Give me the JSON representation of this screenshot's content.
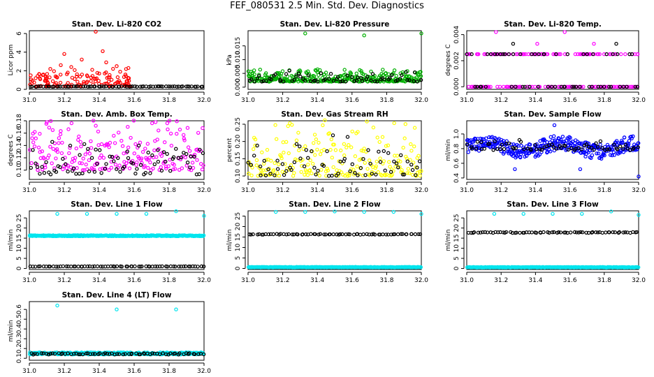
{
  "figure": {
    "title": "FEF_080531  2.5 Min. Std. Dev. Diagnostics"
  },
  "chart_data": [
    {
      "type": "scatter",
      "title": "Stan. Dev. Li-820 CO2",
      "xlabel": "",
      "ylabel": "Licor ppm",
      "xlim": [
        31.0,
        32.0
      ],
      "xticks": [
        31.0,
        31.2,
        31.4,
        31.6,
        31.8,
        32.0
      ],
      "ylim": [
        0,
        6.3
      ],
      "yticks": [
        0,
        2,
        4,
        6
      ],
      "series": [
        {
          "color": "#ff0000",
          "gen": "co2",
          "points": [
            [
              31.06,
              1.2
            ],
            [
              31.08,
              1.6
            ],
            [
              31.1,
              0.9
            ],
            [
              31.12,
              2.2
            ],
            [
              31.15,
              1.4
            ],
            [
              31.18,
              2.6
            ],
            [
              31.2,
              3.8
            ],
            [
              31.22,
              1.8
            ],
            [
              31.24,
              2.4
            ],
            [
              31.26,
              1.1
            ],
            [
              31.3,
              3.2
            ],
            [
              31.33,
              1.5
            ],
            [
              31.36,
              2.1
            ],
            [
              31.38,
              6.2
            ],
            [
              31.4,
              1.7
            ],
            [
              31.42,
              4.1
            ],
            [
              31.44,
              2.9
            ],
            [
              31.46,
              1.3
            ],
            [
              31.5,
              2.5
            ],
            [
              31.52,
              1.9
            ],
            [
              31.55,
              1.6
            ],
            [
              31.57,
              1.2
            ]
          ]
        },
        {
          "color": "#000000",
          "gen": "flat",
          "base": 0.3,
          "spread": 0.05,
          "n": 80,
          "points": []
        }
      ]
    },
    {
      "type": "scatter",
      "title": "Stan. Dev. Li-820 Pressure",
      "xlabel": "",
      "ylabel": "kPa",
      "xlim": [
        31.0,
        32.0
      ],
      "xticks": [
        31.0,
        31.2,
        31.4,
        31.6,
        31.8,
        32.0
      ],
      "ylim": [
        -0.0008,
        0.0205
      ],
      "yticks": [
        0.0,
        0.005,
        0.01,
        0.015
      ],
      "ytick_labels": [
        "0.000",
        "0.005",
        "0.010",
        "0.015"
      ],
      "series": [
        {
          "color": "#00b000",
          "gen": "band",
          "base": 0.002,
          "spread": 0.0032,
          "n": 330,
          "points": [
            [
              31.33,
              0.0195
            ],
            [
              31.67,
              0.0188
            ],
            [
              32.0,
              0.0195
            ]
          ]
        },
        {
          "color": "#000000",
          "gen": "band",
          "base": 0.002,
          "spread": 0.003,
          "n": 70,
          "points": []
        }
      ]
    },
    {
      "type": "scatter",
      "title": "Stan. Dev. Li-820 Temp.",
      "xlabel": "",
      "ylabel": "degrees C",
      "xlim": [
        31.0,
        32.0
      ],
      "xticks": [
        31.0,
        31.2,
        31.4,
        31.6,
        31.8,
        32.0
      ],
      "ylim": [
        -0.0002,
        0.0043
      ],
      "yticks": [
        0.0,
        0.002,
        0.004
      ],
      "ytick_labels": [
        "0.000",
        "0.002",
        "0.004"
      ],
      "series": [
        {
          "color": "#ff00ff",
          "gen": "levels",
          "levels": [
            0.0,
            0.0025
          ],
          "n": 180,
          "points": [
            [
              31.17,
              0.0042
            ],
            [
              31.57,
              0.0042
            ],
            [
              31.41,
              0.0033
            ],
            [
              31.74,
              0.0033
            ]
          ]
        },
        {
          "color": "#000000",
          "gen": "levels",
          "levels": [
            0.0,
            0.0025
          ],
          "n": 60,
          "points": [
            [
              31.27,
              0.0033
            ],
            [
              31.87,
              0.0033
            ]
          ]
        }
      ]
    },
    {
      "type": "scatter",
      "title": "Stan. Dev. Amb. Box Temp.",
      "xlabel": "",
      "ylabel": "degrees C",
      "xlim": [
        31.0,
        32.0
      ],
      "xticks": [
        31.0,
        31.2,
        31.4,
        31.6,
        31.8,
        32.0
      ],
      "ylim": [
        0.085,
        0.18
      ],
      "yticks": [
        0.1,
        0.12,
        0.14,
        0.16,
        0.18
      ],
      "ytick_labels": [
        "0.10",
        "0.12",
        "0.14",
        "0.16",
        "0.18"
      ],
      "series": [
        {
          "color": "#ff00ff",
          "gen": "band",
          "base": 0.1,
          "spread": 0.07,
          "n": 230,
          "points": []
        },
        {
          "color": "#000000",
          "gen": "band",
          "base": 0.093,
          "spread": 0.04,
          "n": 80,
          "points": []
        }
      ]
    },
    {
      "type": "scatter",
      "title": "Stan. Dev. Gas Stream RH",
      "xlabel": "",
      "ylabel": "percent",
      "xlim": [
        31.0,
        32.0
      ],
      "xticks": [
        31.0,
        31.2,
        31.4,
        31.6,
        31.8,
        32.0
      ],
      "ylim": [
        0.09,
        0.26
      ],
      "yticks": [
        0.1,
        0.15,
        0.2,
        0.25
      ],
      "ytick_labels": [
        "0.10",
        "0.15",
        "0.20",
        "0.25"
      ],
      "series": [
        {
          "color": "#ffff00",
          "gen": "band",
          "base": 0.1,
          "spread": 0.13,
          "n": 220,
          "points": []
        },
        {
          "color": "#000000",
          "gen": "band",
          "base": 0.1,
          "spread": 0.09,
          "n": 70,
          "points": []
        }
      ]
    },
    {
      "type": "scatter",
      "title": "Stan. Dev. Sample Flow",
      "xlabel": "",
      "ylabel": "ml/min",
      "xlim": [
        31.0,
        32.0
      ],
      "xticks": [
        31.0,
        31.2,
        31.4,
        31.6,
        31.8,
        32.0
      ],
      "ylim": [
        0.38,
        1.18
      ],
      "yticks": [
        0.4,
        0.6,
        0.8,
        1.0
      ],
      "ytick_labels": [
        "0.4",
        "0.6",
        "0.8",
        "1.0"
      ],
      "series": [
        {
          "color": "#0000ff",
          "gen": "wave",
          "base": 0.82,
          "spread": 0.2,
          "n": 360,
          "points": [
            [
              31.28,
              0.52
            ],
            [
              31.66,
              0.52
            ],
            [
              31.51,
              1.12
            ],
            [
              32.0,
              0.42
            ]
          ]
        },
        {
          "color": "#000000",
          "gen": "band",
          "base": 0.78,
          "spread": 0.12,
          "n": 70,
          "points": []
        }
      ]
    },
    {
      "type": "scatter",
      "title": "Stan. Dev. Line 1 Flow",
      "xlabel": "",
      "ylabel": "ml/min",
      "xlim": [
        31.0,
        32.0
      ],
      "xticks": [
        31.0,
        31.2,
        31.4,
        31.6,
        31.8,
        32.0
      ],
      "ylim": [
        -0.5,
        28.5
      ],
      "yticks": [
        0,
        5,
        10,
        15,
        20,
        25
      ],
      "series": [
        {
          "color": "#00e5ee",
          "gen": "flat",
          "base": 16.2,
          "spread": 0.5,
          "n": 330,
          "points": [
            [
              31.16,
              27
            ],
            [
              31.33,
              27
            ],
            [
              31.5,
              27
            ],
            [
              31.67,
              27
            ],
            [
              31.84,
              28.3
            ],
            [
              32.0,
              26
            ]
          ]
        },
        {
          "color": "#000000",
          "gen": "flat",
          "base": 1.0,
          "spread": 0.15,
          "n": 70,
          "points": []
        }
      ]
    },
    {
      "type": "scatter",
      "title": "Stan. Dev. Line 2 Flow",
      "xlabel": "",
      "ylabel": "ml/min",
      "xlim": [
        31.0,
        32.0
      ],
      "xticks": [
        31.0,
        31.2,
        31.4,
        31.6,
        31.8,
        32.0
      ],
      "ylim": [
        -0.5,
        27.5
      ],
      "yticks": [
        0,
        5,
        10,
        15,
        20,
        25
      ],
      "series": [
        {
          "color": "#00e5ee",
          "gen": "flat",
          "base": 0.6,
          "spread": 0.3,
          "n": 330,
          "points": [
            [
              31.16,
              27
            ],
            [
              31.33,
              27
            ],
            [
              31.5,
              27.2
            ],
            [
              31.67,
              27
            ],
            [
              31.84,
              27
            ],
            [
              32.0,
              26
            ]
          ]
        },
        {
          "color": "#000000",
          "gen": "flat",
          "base": 16.3,
          "spread": 0.35,
          "n": 70,
          "points": []
        }
      ]
    },
    {
      "type": "scatter",
      "title": "Stan. Dev. Line 3 Flow",
      "xlabel": "",
      "ylabel": "ml/min",
      "xlim": [
        31.0,
        32.0
      ],
      "xticks": [
        31.0,
        31.2,
        31.4,
        31.6,
        31.8,
        32.0
      ],
      "ylim": [
        -0.5,
        28.5
      ],
      "yticks": [
        0,
        5,
        10,
        15,
        20,
        25
      ],
      "series": [
        {
          "color": "#00e5ee",
          "gen": "flat",
          "base": 0.6,
          "spread": 0.3,
          "n": 330,
          "points": [
            [
              31.16,
              27
            ],
            [
              31.33,
              27
            ],
            [
              31.5,
              27
            ],
            [
              31.67,
              27
            ],
            [
              31.84,
              28.2
            ],
            [
              32.0,
              26.5
            ]
          ]
        },
        {
          "color": "#000000",
          "gen": "flat",
          "base": 17.8,
          "spread": 0.4,
          "n": 70,
          "points": []
        }
      ]
    },
    {
      "type": "scatter",
      "title": "Stan. Dev. Line 4 (LT) Flow",
      "xlabel": "",
      "ylabel": "ml/min",
      "xlim": [
        31.0,
        32.0
      ],
      "xticks": [
        31.0,
        31.2,
        31.4,
        31.6,
        31.8,
        32.0
      ],
      "ylim": [
        0.08,
        0.68
      ],
      "yticks": [
        0.1,
        0.2,
        0.3,
        0.4,
        0.5,
        0.6
      ],
      "series": [
        {
          "color": "#00e5ee",
          "gen": "flat",
          "base": 0.15,
          "spread": 0.022,
          "n": 330,
          "points": [
            [
              31.16,
              0.64
            ],
            [
              31.5,
              0.6
            ],
            [
              31.84,
              0.6
            ]
          ]
        },
        {
          "color": "#000000",
          "gen": "flat",
          "base": 0.145,
          "spread": 0.015,
          "n": 70,
          "points": []
        }
      ]
    }
  ]
}
